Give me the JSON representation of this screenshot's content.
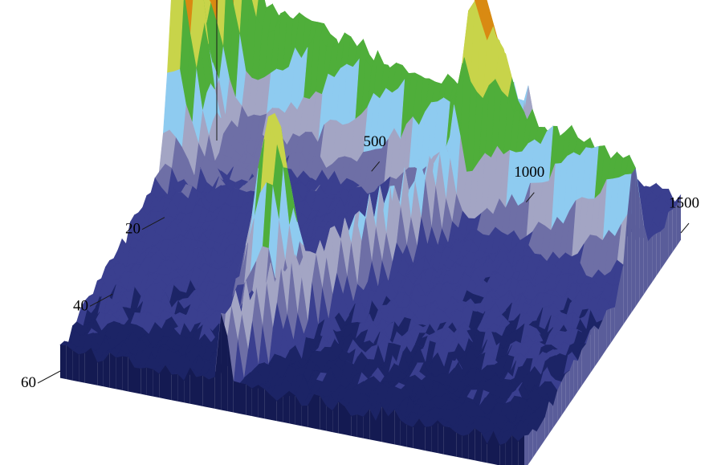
{
  "chart_data": {
    "type": "surface",
    "title": "",
    "x_axis": {
      "label": "",
      "ticks": [
        {
          "value": 500,
          "label": "500"
        },
        {
          "value": 1000,
          "label": "1000"
        },
        {
          "value": 1500,
          "label": "1500"
        }
      ],
      "range": [
        0,
        1500
      ]
    },
    "y_axis": {
      "label": "",
      "ticks": [
        {
          "value": 20,
          "label": "20"
        },
        {
          "value": 40,
          "label": "40"
        },
        {
          "value": 60,
          "label": "60"
        }
      ],
      "range": [
        0,
        60
      ]
    },
    "z_axis": {
      "label": "",
      "range": [
        0,
        1
      ]
    },
    "colormap": [
      "#1c2466",
      "#3a3f8f",
      "#6e6fa6",
      "#a3a5c4",
      "#8ecbf0",
      "#4fae3a",
      "#c8d44a",
      "#d98a12",
      "#f2f2f2"
    ],
    "peaks": [
      {
        "x": 60,
        "y": 5,
        "z": 0.95
      },
      {
        "x": 20,
        "y": 15,
        "z": 0.75
      },
      {
        "x": 520,
        "y": 40,
        "z": 0.55
      },
      {
        "x": 1000,
        "y": 10,
        "z": 0.3
      }
    ],
    "ridges": [
      {
        "x_start": 0,
        "x_end": 1500,
        "y_start": 3,
        "y_end": 18,
        "z": 0.32
      },
      {
        "x_start": 520,
        "x_end": 1020,
        "y_start": 60,
        "y_end": 2,
        "z": 0.22
      }
    ],
    "grid": false,
    "legend": "none"
  }
}
